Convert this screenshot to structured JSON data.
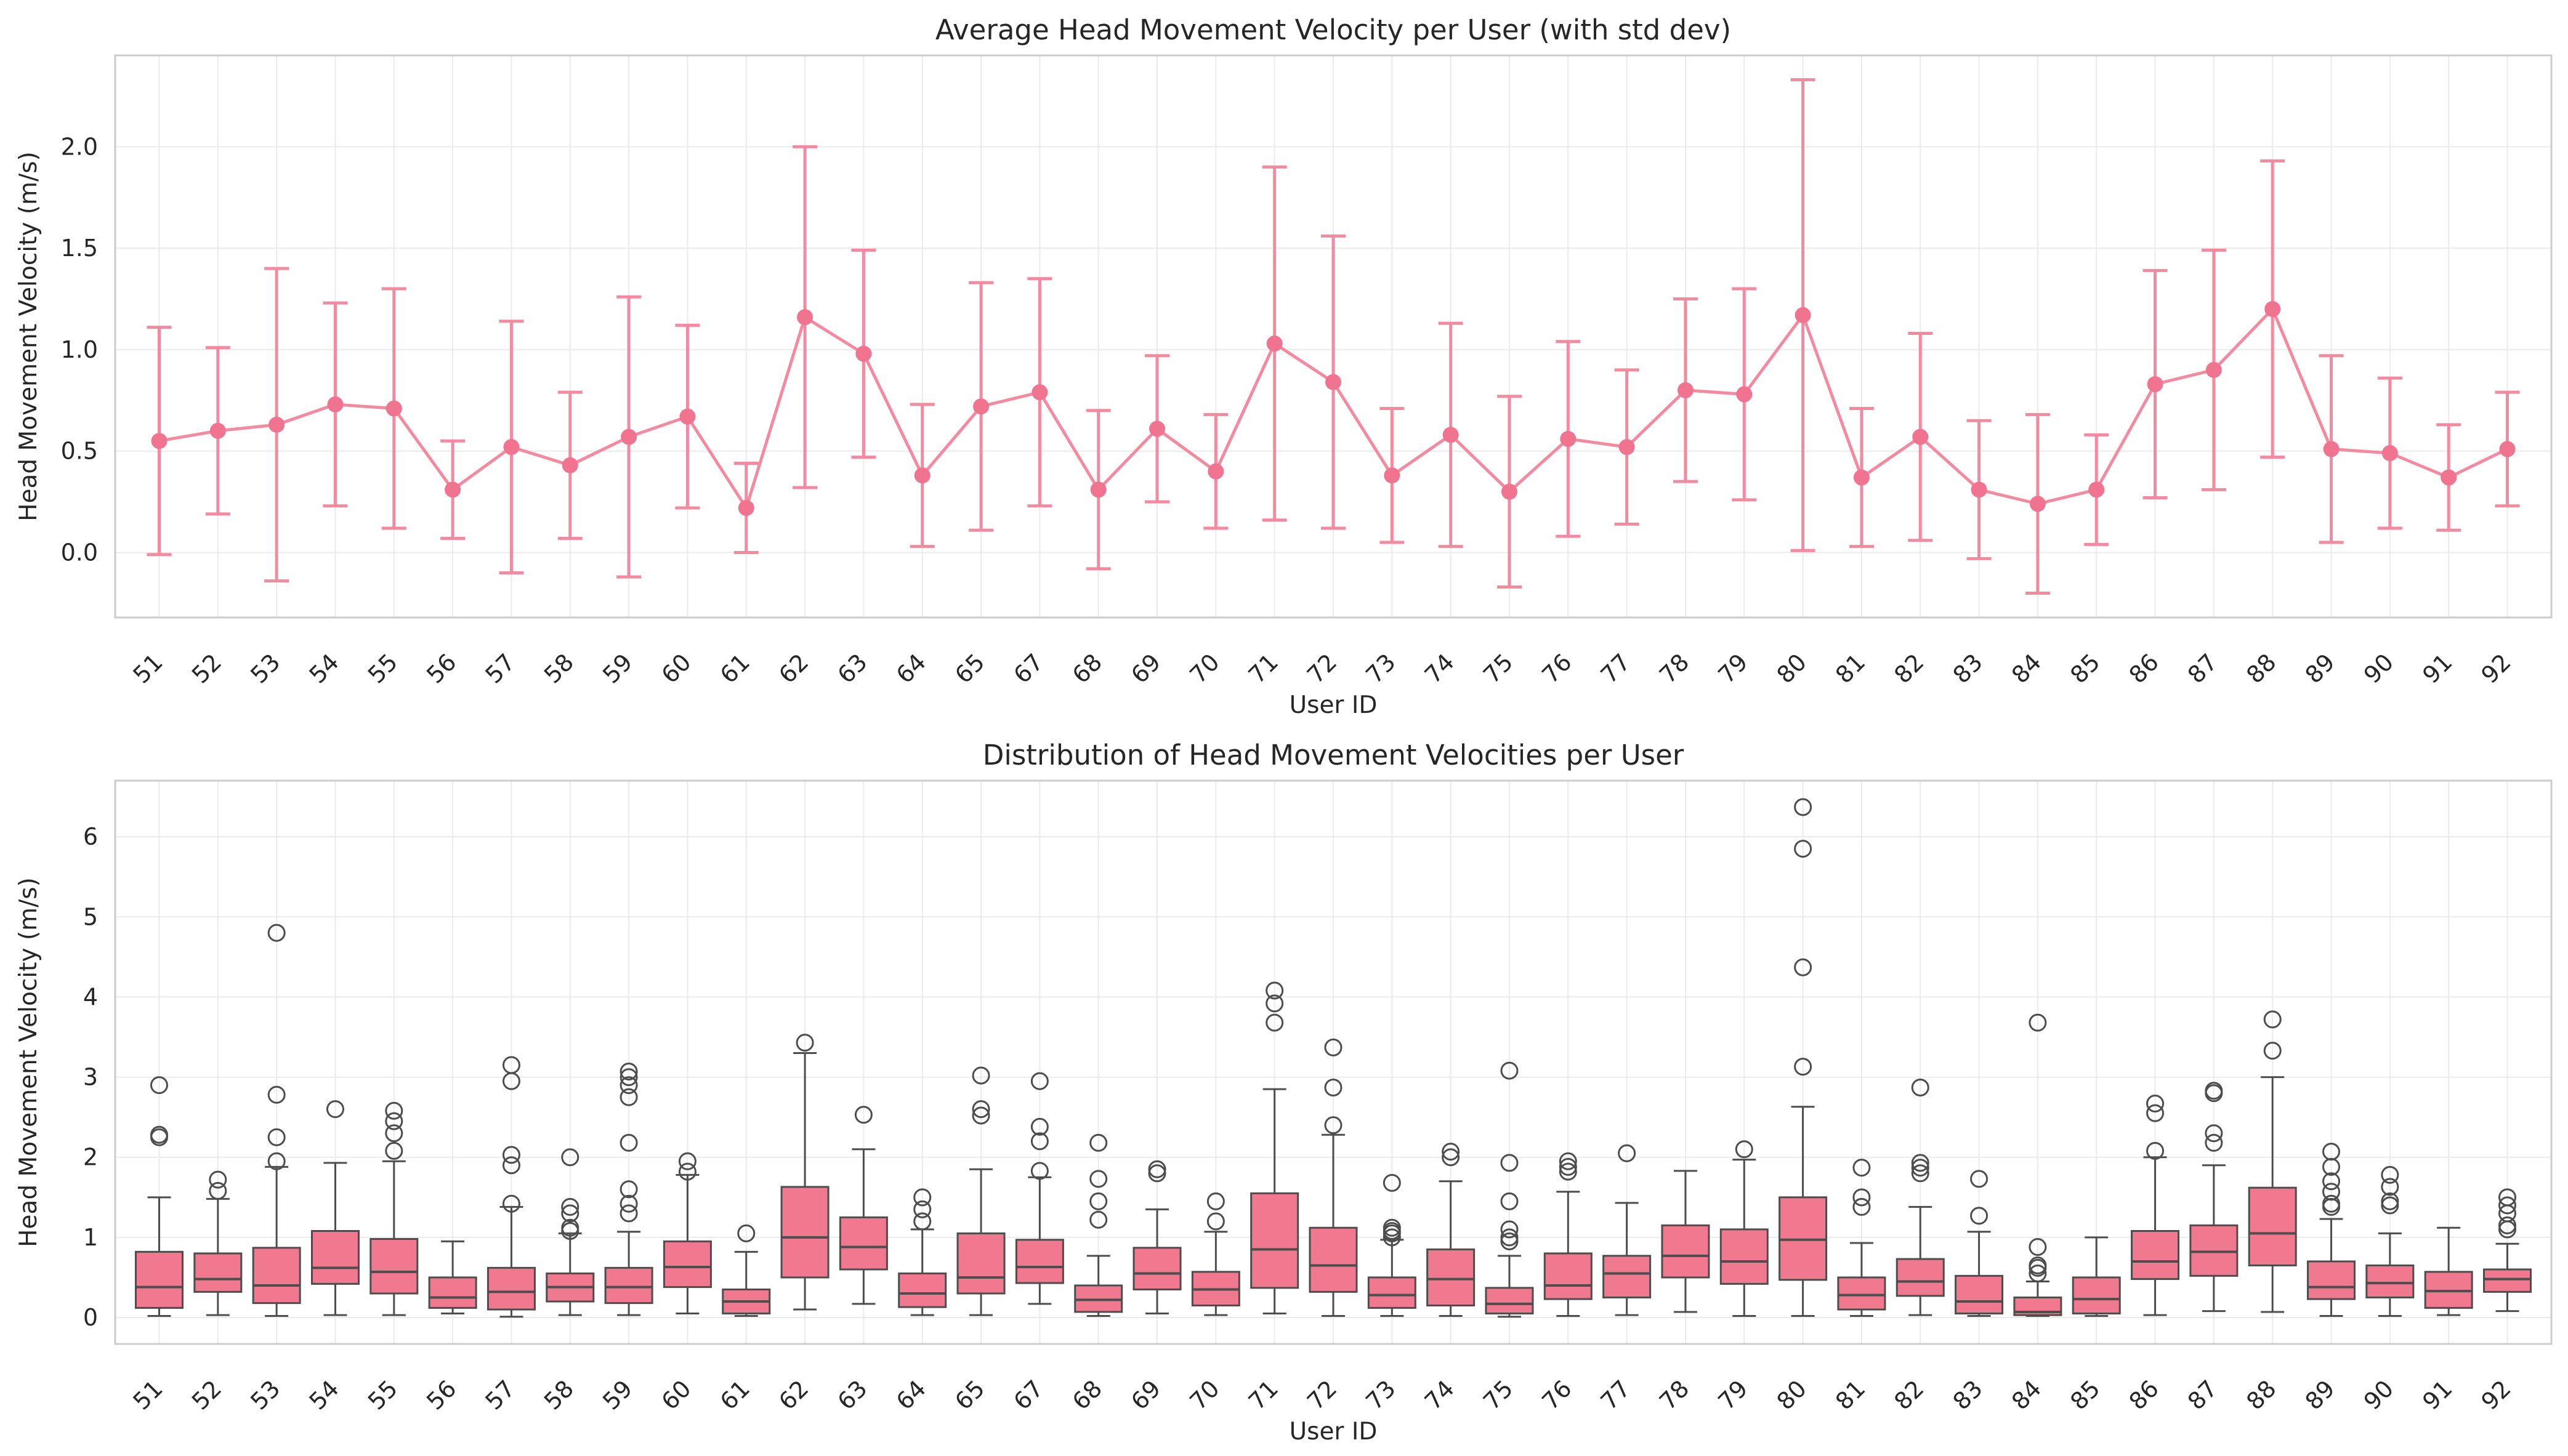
{
  "chart_data": [
    {
      "type": "line",
      "title": "Average Head Movement Velocity per User (with std dev)",
      "xlabel": "User ID",
      "ylabel": "Head Movement Velocity (m/s)",
      "ylim": [
        -0.32,
        2.45
      ],
      "yticks": [
        0.0,
        0.5,
        1.0,
        1.5,
        2.0
      ],
      "grid": true,
      "categories": [
        "51",
        "52",
        "53",
        "54",
        "55",
        "56",
        "57",
        "58",
        "59",
        "60",
        "61",
        "62",
        "63",
        "64",
        "65",
        "67",
        "68",
        "69",
        "70",
        "71",
        "72",
        "73",
        "74",
        "75",
        "76",
        "77",
        "78",
        "79",
        "80",
        "81",
        "82",
        "83",
        "84",
        "85",
        "86",
        "87",
        "88",
        "89",
        "90",
        "91",
        "92"
      ],
      "series": [
        {
          "values": [
            0.55,
            0.6,
            0.63,
            0.73,
            0.71,
            0.31,
            0.52,
            0.43,
            0.57,
            0.67,
            0.22,
            1.16,
            0.98,
            0.38,
            0.72,
            0.79,
            0.31,
            0.61,
            0.4,
            1.03,
            0.84,
            0.38,
            0.58,
            0.3,
            0.56,
            0.52,
            0.8,
            0.78,
            1.17,
            0.37,
            0.57,
            0.31,
            0.24,
            0.31,
            0.83,
            0.9,
            1.2,
            0.51,
            0.49,
            0.37,
            0.51
          ],
          "std": [
            0.56,
            0.41,
            0.77,
            0.5,
            0.59,
            0.24,
            0.62,
            0.36,
            0.69,
            0.45,
            0.22,
            0.84,
            0.51,
            0.35,
            0.61,
            0.56,
            0.39,
            0.36,
            0.28,
            0.87,
            0.72,
            0.33,
            0.55,
            0.47,
            0.48,
            0.38,
            0.45,
            0.52,
            1.16,
            0.34,
            0.51,
            0.34,
            0.44,
            0.27,
            0.56,
            0.59,
            0.73,
            0.46,
            0.37,
            0.26,
            0.28
          ]
        }
      ],
      "colors": {
        "line": "#f38aa0",
        "marker": "#f0748f"
      }
    },
    {
      "type": "box",
      "title": "Distribution of Head Movement Velocities per User",
      "xlabel": "User ID",
      "ylabel": "Head Movement Velocity (m/s)",
      "ylim": [
        -0.33,
        6.7
      ],
      "yticks": [
        0,
        1,
        2,
        3,
        4,
        5,
        6
      ],
      "grid": true,
      "categories": [
        "51",
        "52",
        "53",
        "54",
        "55",
        "56",
        "57",
        "58",
        "59",
        "60",
        "61",
        "62",
        "63",
        "64",
        "65",
        "67",
        "68",
        "69",
        "70",
        "71",
        "72",
        "73",
        "74",
        "75",
        "76",
        "77",
        "78",
        "79",
        "80",
        "81",
        "82",
        "83",
        "84",
        "85",
        "86",
        "87",
        "88",
        "89",
        "90",
        "91",
        "92"
      ],
      "boxes": [
        {
          "min": 0.02,
          "q1": 0.12,
          "median": 0.38,
          "q3": 0.82,
          "max": 1.5,
          "outliers": [
            2.25,
            2.28,
            2.9
          ]
        },
        {
          "min": 0.03,
          "q1": 0.32,
          "median": 0.48,
          "q3": 0.8,
          "max": 1.48,
          "outliers": [
            1.58,
            1.72
          ]
        },
        {
          "min": 0.02,
          "q1": 0.18,
          "median": 0.4,
          "q3": 0.87,
          "max": 1.88,
          "outliers": [
            1.95,
            2.25,
            2.78,
            4.8
          ]
        },
        {
          "min": 0.03,
          "q1": 0.42,
          "median": 0.62,
          "q3": 1.08,
          "max": 1.93,
          "outliers": [
            2.6
          ]
        },
        {
          "min": 0.03,
          "q1": 0.3,
          "median": 0.57,
          "q3": 0.98,
          "max": 1.95,
          "outliers": [
            2.08,
            2.3,
            2.45,
            2.58
          ]
        },
        {
          "min": 0.05,
          "q1": 0.12,
          "median": 0.25,
          "q3": 0.5,
          "max": 0.95,
          "outliers": []
        },
        {
          "min": 0.01,
          "q1": 0.1,
          "median": 0.32,
          "q3": 0.62,
          "max": 1.38,
          "outliers": [
            1.42,
            1.9,
            2.03,
            2.95,
            3.15
          ]
        },
        {
          "min": 0.03,
          "q1": 0.2,
          "median": 0.38,
          "q3": 0.55,
          "max": 1.05,
          "outliers": [
            1.08,
            1.12,
            1.3,
            1.38,
            2.0
          ]
        },
        {
          "min": 0.03,
          "q1": 0.18,
          "median": 0.38,
          "q3": 0.62,
          "max": 1.07,
          "outliers": [
            1.3,
            1.42,
            1.6,
            2.18,
            2.75,
            2.9,
            3.0,
            3.07
          ]
        },
        {
          "min": 0.05,
          "q1": 0.38,
          "median": 0.63,
          "q3": 0.95,
          "max": 1.78,
          "outliers": [
            1.82,
            1.95
          ]
        },
        {
          "min": 0.02,
          "q1": 0.05,
          "median": 0.2,
          "q3": 0.35,
          "max": 0.82,
          "outliers": [
            1.05
          ]
        },
        {
          "min": 0.1,
          "q1": 0.5,
          "median": 1.0,
          "q3": 1.63,
          "max": 3.3,
          "outliers": [
            3.43
          ]
        },
        {
          "min": 0.17,
          "q1": 0.6,
          "median": 0.88,
          "q3": 1.25,
          "max": 2.1,
          "outliers": [
            2.53
          ]
        },
        {
          "min": 0.03,
          "q1": 0.13,
          "median": 0.3,
          "q3": 0.55,
          "max": 1.1,
          "outliers": [
            1.2,
            1.35,
            1.5
          ]
        },
        {
          "min": 0.03,
          "q1": 0.3,
          "median": 0.5,
          "q3": 1.05,
          "max": 1.85,
          "outliers": [
            2.52,
            2.6,
            3.02
          ]
        },
        {
          "min": 0.17,
          "q1": 0.43,
          "median": 0.63,
          "q3": 0.97,
          "max": 1.75,
          "outliers": [
            1.83,
            2.2,
            2.38,
            2.95
          ]
        },
        {
          "min": 0.02,
          "q1": 0.07,
          "median": 0.22,
          "q3": 0.4,
          "max": 0.77,
          "outliers": [
            1.22,
            1.45,
            1.73,
            2.18
          ]
        },
        {
          "min": 0.05,
          "q1": 0.35,
          "median": 0.55,
          "q3": 0.87,
          "max": 1.35,
          "outliers": [
            1.8,
            1.85
          ]
        },
        {
          "min": 0.03,
          "q1": 0.15,
          "median": 0.35,
          "q3": 0.57,
          "max": 1.07,
          "outliers": [
            1.2,
            1.45
          ]
        },
        {
          "min": 0.05,
          "q1": 0.37,
          "median": 0.85,
          "q3": 1.55,
          "max": 2.85,
          "outliers": [
            3.68,
            3.92,
            4.08
          ]
        },
        {
          "min": 0.02,
          "q1": 0.32,
          "median": 0.65,
          "q3": 1.12,
          "max": 2.28,
          "outliers": [
            2.4,
            2.87,
            3.37
          ]
        },
        {
          "min": 0.02,
          "q1": 0.12,
          "median": 0.28,
          "q3": 0.5,
          "max": 0.97,
          "outliers": [
            1.0,
            1.05,
            1.08,
            1.12,
            1.68
          ]
        },
        {
          "min": 0.02,
          "q1": 0.15,
          "median": 0.48,
          "q3": 0.85,
          "max": 1.7,
          "outliers": [
            2.0,
            2.07
          ]
        },
        {
          "min": 0.01,
          "q1": 0.05,
          "median": 0.17,
          "q3": 0.37,
          "max": 0.77,
          "outliers": [
            0.95,
            1.0,
            1.1,
            1.45,
            1.93,
            3.08
          ]
        },
        {
          "min": 0.02,
          "q1": 0.23,
          "median": 0.4,
          "q3": 0.8,
          "max": 1.57,
          "outliers": [
            1.82,
            1.88,
            1.95
          ]
        },
        {
          "min": 0.03,
          "q1": 0.25,
          "median": 0.55,
          "q3": 0.77,
          "max": 1.43,
          "outliers": [
            2.05
          ]
        },
        {
          "min": 0.07,
          "q1": 0.5,
          "median": 0.77,
          "q3": 1.15,
          "max": 1.83,
          "outliers": []
        },
        {
          "min": 0.02,
          "q1": 0.42,
          "median": 0.7,
          "q3": 1.1,
          "max": 1.97,
          "outliers": [
            2.1
          ]
        },
        {
          "min": 0.02,
          "q1": 0.47,
          "median": 0.97,
          "q3": 1.5,
          "max": 2.63,
          "outliers": [
            3.13,
            4.37,
            5.85,
            6.37
          ]
        },
        {
          "min": 0.02,
          "q1": 0.1,
          "median": 0.28,
          "q3": 0.5,
          "max": 0.93,
          "outliers": [
            1.38,
            1.5,
            1.87
          ]
        },
        {
          "min": 0.03,
          "q1": 0.27,
          "median": 0.45,
          "q3": 0.73,
          "max": 1.38,
          "outliers": [
            1.8,
            1.87,
            1.93,
            2.87
          ]
        },
        {
          "min": 0.02,
          "q1": 0.05,
          "median": 0.2,
          "q3": 0.52,
          "max": 1.07,
          "outliers": [
            1.27,
            1.73
          ]
        },
        {
          "min": 0.02,
          "q1": 0.03,
          "median": 0.07,
          "q3": 0.25,
          "max": 0.45,
          "outliers": [
            0.55,
            0.62,
            0.65,
            0.88,
            3.68
          ]
        },
        {
          "min": 0.02,
          "q1": 0.05,
          "median": 0.23,
          "q3": 0.5,
          "max": 1.0,
          "outliers": []
        },
        {
          "min": 0.03,
          "q1": 0.48,
          "median": 0.7,
          "q3": 1.08,
          "max": 2.0,
          "outliers": [
            2.08,
            2.55,
            2.67
          ]
        },
        {
          "min": 0.08,
          "q1": 0.52,
          "median": 0.82,
          "q3": 1.15,
          "max": 1.9,
          "outliers": [
            2.18,
            2.3,
            2.8,
            2.83
          ]
        },
        {
          "min": 0.07,
          "q1": 0.65,
          "median": 1.05,
          "q3": 1.62,
          "max": 3.0,
          "outliers": [
            3.33,
            3.72
          ]
        },
        {
          "min": 0.02,
          "q1": 0.23,
          "median": 0.38,
          "q3": 0.7,
          "max": 1.23,
          "outliers": [
            1.38,
            1.42,
            1.57,
            1.7,
            1.88,
            2.07
          ]
        },
        {
          "min": 0.02,
          "q1": 0.25,
          "median": 0.43,
          "q3": 0.65,
          "max": 1.05,
          "outliers": [
            1.4,
            1.45,
            1.63,
            1.78
          ]
        },
        {
          "min": 0.03,
          "q1": 0.12,
          "median": 0.33,
          "q3": 0.57,
          "max": 1.12,
          "outliers": []
        },
        {
          "min": 0.08,
          "q1": 0.32,
          "median": 0.48,
          "q3": 0.6,
          "max": 0.92,
          "outliers": [
            1.1,
            1.15,
            1.3,
            1.4,
            1.5
          ]
        }
      ],
      "colors": {
        "box": "#f0798f",
        "line": "#4d4d4d"
      }
    }
  ]
}
